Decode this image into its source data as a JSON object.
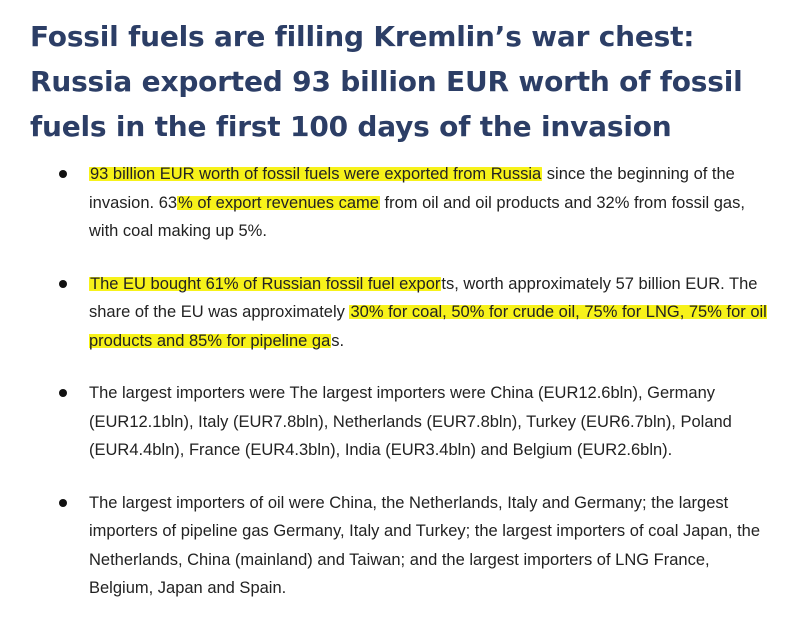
{
  "header": {
    "title": "Fossil fuels are filling Kremlin’s war chest: Russia exported 93 billion EUR worth of fossil fuels in the first 100 days of the invasion"
  },
  "bullets": [
    {
      "seg1_hl": "93 billion EUR worth of fossil fuels were exported from Russia",
      "seg2": " since the beginning of the invasion. 63",
      "seg3_hl": "% of export revenues came",
      "seg4": " from oil and oil products and 32% from fossil gas, with coal making up 5%."
    },
    {
      "seg1_hl": "The EU bought 61% of Russian fossil fuel expor",
      "seg2": "ts, worth approximately 57 billion EUR. The share of the EU was approximately ",
      "seg3_hl": "30% for coal, 50% for crude oil, 75% for LNG, 75% for oil products and 85% for pipeline ga",
      "seg4": "s."
    },
    {
      "text": "The largest importers were The largest importers were China (EUR12.6bln), Germany (EUR12.1bln), Italy (EUR7.8bln), Netherlands (EUR7.8bln), Turkey (EUR6.7bln), Poland (EUR4.4bln), France (EUR4.3bln), India (EUR3.4bln) and Belgium (EUR2.6bln)."
    },
    {
      "text": "The largest importers of oil were China, the Netherlands, Italy and Germany; the largest importers of pipeline gas Germany, Italy and Turkey; the largest importers of coal Japan, the Netherlands, China (mainland) and Taiwan; and the largest importers of LNG France, Belgium, Japan and Spain."
    }
  ],
  "colors": {
    "title": "#2c3e66",
    "highlight": "#f7f21a",
    "body_text": "#222222"
  }
}
